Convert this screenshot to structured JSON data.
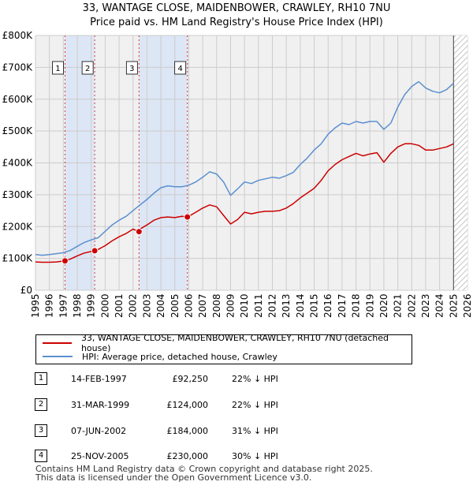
{
  "title": {
    "line1": "33, WANTAGE CLOSE, MAIDENBOWER, CRAWLEY, RH10 7NU",
    "line2": "Price paid vs. HM Land Registry's House Price Index (HPI)"
  },
  "colors": {
    "property": "#cc0000",
    "hpi": "#5b8fd0",
    "shade": "#dde6f5",
    "grid": "#cccccc"
  },
  "legend": {
    "property_label": "33, WANTAGE CLOSE, MAIDENBOWER, CRAWLEY, RH10 7NU (detached house)",
    "hpi_label": "HPI: Average price, detached house, Crawley"
  },
  "sales": [
    {
      "num": "1",
      "date": "14-FEB-1997",
      "price": "£92,250",
      "delta": "22% ↓ HPI",
      "year": 1997.12,
      "value": 92250
    },
    {
      "num": "2",
      "date": "31-MAR-1999",
      "price": "£124,000",
      "delta": "22% ↓ HPI",
      "year": 1999.25,
      "value": 124000
    },
    {
      "num": "3",
      "date": "07-JUN-2002",
      "price": "£184,000",
      "delta": "31% ↓ HPI",
      "year": 2002.43,
      "value": 184000
    },
    {
      "num": "4",
      "date": "25-NOV-2005",
      "price": "£230,000",
      "delta": "30% ↓ HPI",
      "year": 2005.9,
      "value": 230000
    }
  ],
  "footer": {
    "line1": "Contains HM Land Registry data © Crown copyright and database right 2025.",
    "line2": "This data is licensed under the Open Government Licence v3.0."
  },
  "chart_data": {
    "type": "line",
    "title": "33, WANTAGE CLOSE, MAIDENBOWER, CRAWLEY, RH10 7NU — Price paid vs. HM Land Registry's House Price Index (HPI)",
    "xlabel": "",
    "ylabel": "",
    "xlim": [
      1995,
      2026
    ],
    "ylim": [
      0,
      800000
    ],
    "x_ticks": [
      "1995",
      "1996",
      "1997",
      "1998",
      "1999",
      "2000",
      "2001",
      "2002",
      "2003",
      "2004",
      "2005",
      "2006",
      "2007",
      "2008",
      "2009",
      "2010",
      "2011",
      "2012",
      "2013",
      "2014",
      "2015",
      "2016",
      "2017",
      "2018",
      "2019",
      "2020",
      "2021",
      "2022",
      "2023",
      "2024",
      "2025",
      "2026"
    ],
    "y_ticks": [
      {
        "value": 0,
        "label": "£0"
      },
      {
        "value": 100000,
        "label": "£100K"
      },
      {
        "value": 200000,
        "label": "£200K"
      },
      {
        "value": 300000,
        "label": "£300K"
      },
      {
        "value": 400000,
        "label": "£400K"
      },
      {
        "value": 500000,
        "label": "£500K"
      },
      {
        "value": 600000,
        "label": "£600K"
      },
      {
        "value": 700000,
        "label": "£700K"
      },
      {
        "value": 800000,
        "label": "£800K"
      }
    ],
    "shaded_ranges": [
      [
        1997.12,
        1999.25
      ],
      [
        2002.43,
        2005.9
      ]
    ],
    "hatched_range": [
      2025.0,
      2026.0
    ],
    "series": [
      {
        "name": "HPI: Average price, detached house, Crawley",
        "x": [
          1995.0,
          1995.5,
          1996.0,
          1996.5,
          1997.0,
          1997.5,
          1998.0,
          1998.5,
          1999.0,
          1999.5,
          2000.0,
          2000.5,
          2001.0,
          2001.5,
          2002.0,
          2002.5,
          2003.0,
          2003.5,
          2004.0,
          2004.5,
          2005.0,
          2005.5,
          2006.0,
          2006.5,
          2007.0,
          2007.5,
          2008.0,
          2008.5,
          2009.0,
          2009.5,
          2010.0,
          2010.5,
          2011.0,
          2011.5,
          2012.0,
          2012.5,
          2013.0,
          2013.5,
          2014.0,
          2014.5,
          2015.0,
          2015.5,
          2016.0,
          2016.5,
          2017.0,
          2017.5,
          2018.0,
          2018.5,
          2019.0,
          2019.5,
          2020.0,
          2020.5,
          2021.0,
          2021.5,
          2022.0,
          2022.5,
          2023.0,
          2023.5,
          2024.0,
          2024.5,
          2025.0
        ],
        "y": [
          112000,
          110000,
          112000,
          115000,
          118000,
          125000,
          138000,
          150000,
          158000,
          165000,
          185000,
          205000,
          220000,
          232000,
          250000,
          268000,
          285000,
          305000,
          322000,
          328000,
          325000,
          325000,
          330000,
          340000,
          355000,
          372000,
          365000,
          340000,
          298000,
          318000,
          340000,
          335000,
          345000,
          350000,
          355000,
          352000,
          360000,
          370000,
          395000,
          415000,
          440000,
          460000,
          490000,
          510000,
          525000,
          520000,
          530000,
          525000,
          530000,
          530000,
          505000,
          525000,
          575000,
          615000,
          640000,
          655000,
          635000,
          625000,
          620000,
          630000,
          650000
        ]
      },
      {
        "name": "33, WANTAGE CLOSE, MAIDENBOWER, CRAWLEY, RH10 7NU (detached house)",
        "x": [
          1995.0,
          1995.5,
          1996.0,
          1996.5,
          1997.12,
          1997.5,
          1998.0,
          1998.5,
          1999.25,
          1999.5,
          2000.0,
          2000.5,
          2001.0,
          2001.5,
          2002.0,
          2002.43,
          2002.5,
          2003.0,
          2003.5,
          2004.0,
          2004.5,
          2005.0,
          2005.5,
          2005.9,
          2006.0,
          2006.5,
          2007.0,
          2007.5,
          2008.0,
          2008.5,
          2009.0,
          2009.5,
          2010.0,
          2010.5,
          2011.0,
          2011.5,
          2012.0,
          2012.5,
          2013.0,
          2013.5,
          2014.0,
          2014.5,
          2015.0,
          2015.5,
          2016.0,
          2016.5,
          2017.0,
          2017.5,
          2018.0,
          2018.5,
          2019.0,
          2019.5,
          2020.0,
          2020.5,
          2021.0,
          2021.5,
          2022.0,
          2022.5,
          2023.0,
          2023.5,
          2024.0,
          2024.5,
          2025.0
        ],
        "y": [
          89000,
          88000,
          88000,
          89000,
          92250,
          98000,
          108000,
          117000,
          124000,
          128000,
          140000,
          155000,
          168000,
          178000,
          192000,
          184000,
          192000,
          205000,
          220000,
          228000,
          230000,
          228000,
          232000,
          230000,
          232000,
          245000,
          258000,
          268000,
          262000,
          235000,
          208000,
          222000,
          245000,
          240000,
          245000,
          248000,
          248000,
          250000,
          258000,
          272000,
          290000,
          305000,
          320000,
          345000,
          375000,
          395000,
          410000,
          420000,
          430000,
          422000,
          428000,
          432000,
          402000,
          430000,
          450000,
          460000,
          460000,
          455000,
          440000,
          440000,
          445000,
          450000,
          460000
        ]
      }
    ],
    "markers": [
      {
        "label": "1",
        "x": 1997.12,
        "y": 92250
      },
      {
        "label": "2",
        "x": 1999.25,
        "y": 124000
      },
      {
        "label": "3",
        "x": 2002.43,
        "y": 184000
      },
      {
        "label": "4",
        "x": 2005.9,
        "y": 230000
      }
    ]
  }
}
